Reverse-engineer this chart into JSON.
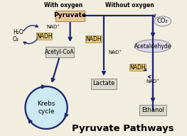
{
  "bg_color": "#f2eedf",
  "arrow_color": "#1a2570",
  "title": "Pyruvate Pathways",
  "title_fontsize": 9.5,
  "with_oxygen_label": "With oxygen",
  "without_oxygen_label": "Without oxygen",
  "pyruvate_color": "#e8c89a",
  "nadh_color": "#e8c87a",
  "acetylcoa_color": "#d8d8cc",
  "lactate_color": "#d8d8cc",
  "ethanol_color": "#d8d8cc",
  "acetaldehyde_color": "#ddd8e8",
  "co2_color": "#e8e8e8",
  "krebs_color": "#cce8f0"
}
